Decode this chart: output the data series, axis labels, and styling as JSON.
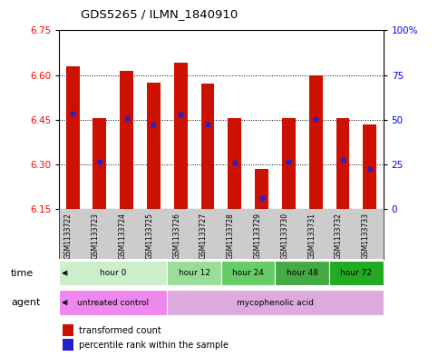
{
  "title": "GDS5265 / ILMN_1840910",
  "samples": [
    "GSM1133722",
    "GSM1133723",
    "GSM1133724",
    "GSM1133725",
    "GSM1133726",
    "GSM1133727",
    "GSM1133728",
    "GSM1133729",
    "GSM1133730",
    "GSM1133731",
    "GSM1133732",
    "GSM1133733"
  ],
  "bar_top": [
    6.63,
    6.455,
    6.615,
    6.575,
    6.64,
    6.57,
    6.455,
    6.285,
    6.455,
    6.6,
    6.455,
    6.435
  ],
  "bar_bottom": 6.15,
  "blue_dot_val": [
    6.47,
    6.31,
    6.455,
    6.435,
    6.468,
    6.435,
    6.305,
    6.185,
    6.31,
    6.452,
    6.315,
    6.285
  ],
  "ylim": [
    6.15,
    6.75
  ],
  "yticks_left": [
    6.15,
    6.3,
    6.45,
    6.6,
    6.75
  ],
  "yticks_right_vals": [
    0,
    25,
    50,
    75,
    100
  ],
  "yticks_right_pos": [
    6.15,
    6.3,
    6.45,
    6.6,
    6.75
  ],
  "bar_color": "#cc1100",
  "dot_color": "#2222cc",
  "time_groups": [
    {
      "label": "hour 0",
      "start": 0,
      "end": 3,
      "color": "#cceecc"
    },
    {
      "label": "hour 12",
      "start": 4,
      "end": 5,
      "color": "#99dd99"
    },
    {
      "label": "hour 24",
      "start": 6,
      "end": 7,
      "color": "#66cc66"
    },
    {
      "label": "hour 48",
      "start": 8,
      "end": 9,
      "color": "#44aa44"
    },
    {
      "label": "hour 72",
      "start": 10,
      "end": 11,
      "color": "#22aa22"
    }
  ],
  "agent_groups": [
    {
      "label": "untreated control",
      "start": 0,
      "end": 3,
      "color": "#ee88ee"
    },
    {
      "label": "mycophenolic acid",
      "start": 4,
      "end": 11,
      "color": "#ddaadd"
    }
  ],
  "legend_entries": [
    {
      "label": "transformed count",
      "color": "#cc1100",
      "marker": "s"
    },
    {
      "label": "percentile rank within the sample",
      "color": "#2222cc",
      "marker": "s"
    }
  ],
  "bg_color": "#ffffff",
  "sample_bg_color": "#cccccc",
  "bar_width": 0.5
}
